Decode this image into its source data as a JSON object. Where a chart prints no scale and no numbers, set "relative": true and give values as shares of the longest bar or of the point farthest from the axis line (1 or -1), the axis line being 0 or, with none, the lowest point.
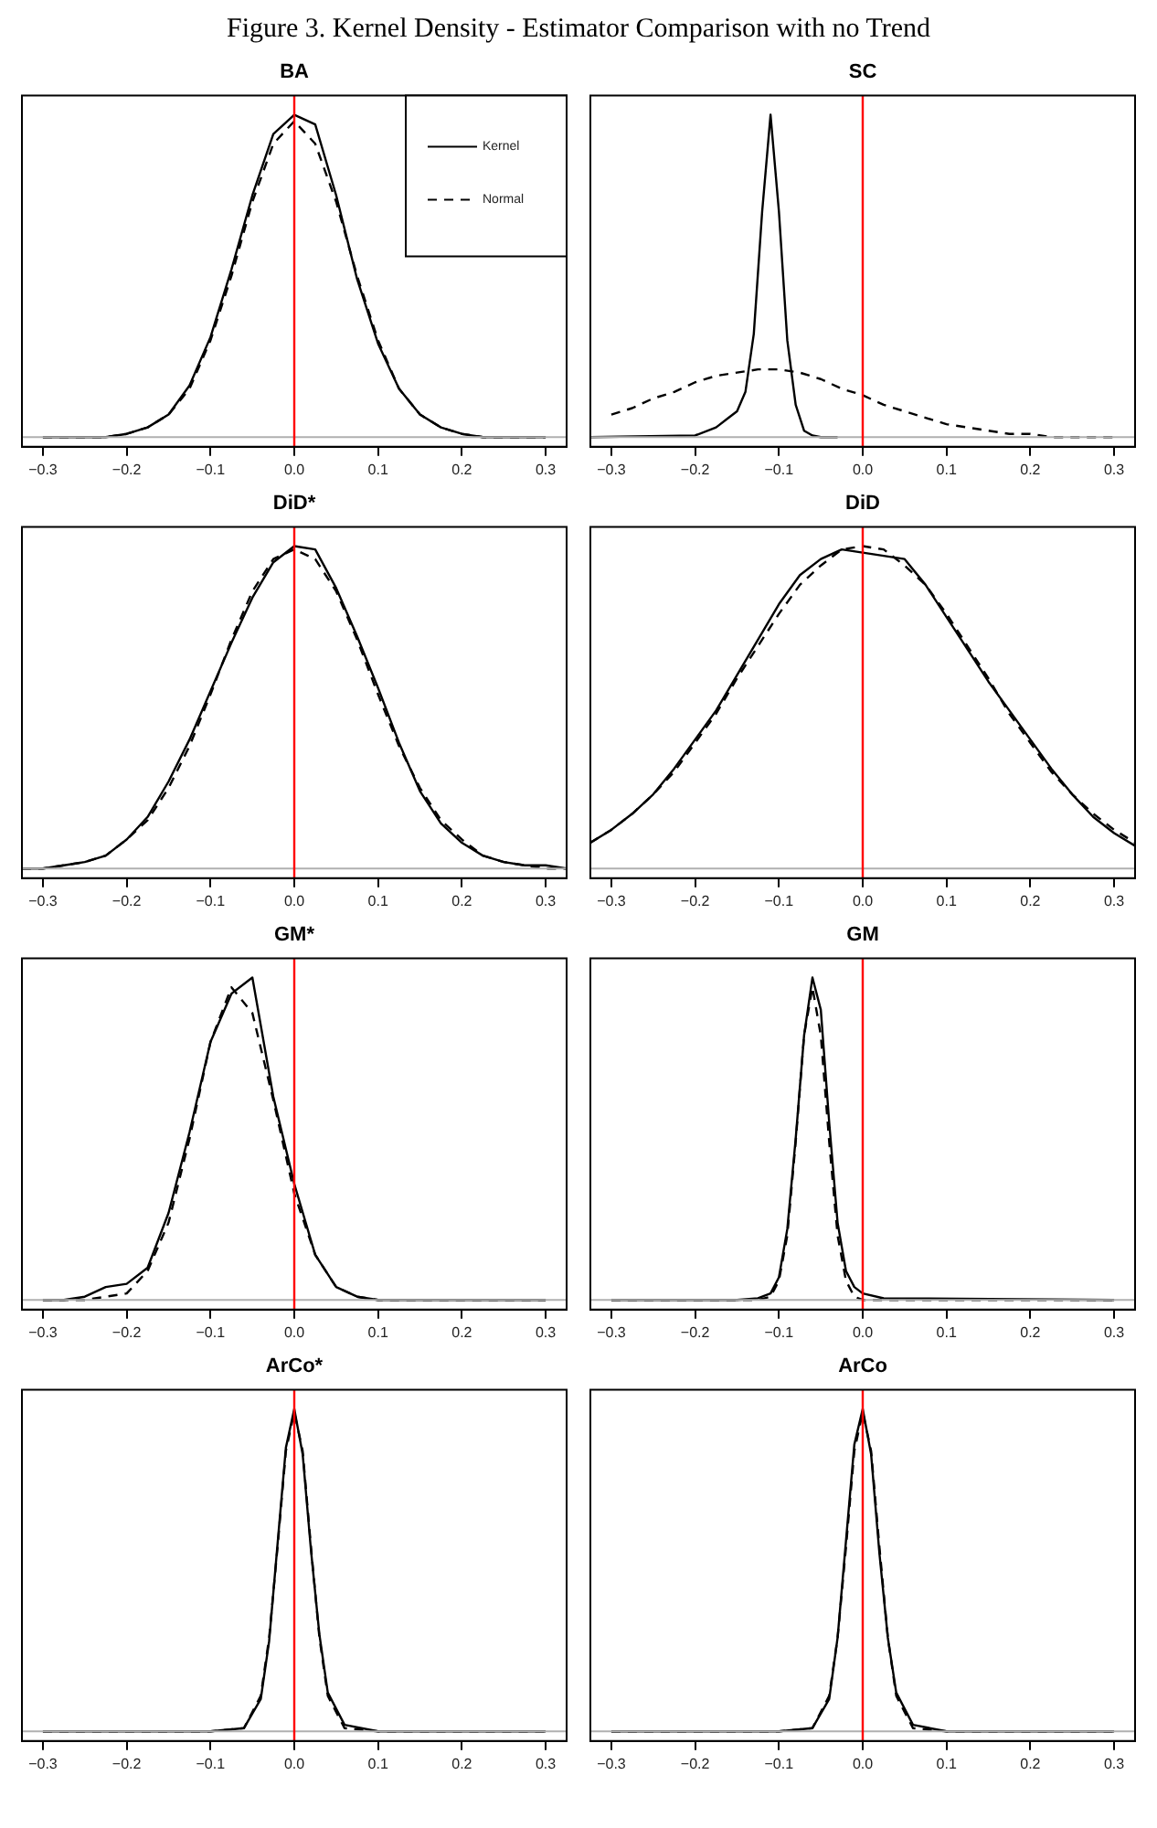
{
  "chart_data": [
    {
      "type": "line",
      "title": "BA",
      "relative": true,
      "legend": "top right",
      "annotations": [
        "Figure 3. Kernel Density - Estimator Comparison with no Trend"
      ],
      "x": [
        -0.3,
        -0.275,
        -0.25,
        -0.225,
        -0.2,
        -0.175,
        -0.15,
        -0.125,
        -0.1,
        -0.075,
        -0.05,
        -0.025,
        0,
        0.025,
        0.05,
        0.075,
        0.1,
        0.125,
        0.15,
        0.175,
        0.2,
        0.225,
        0.25,
        0.275,
        0.3
      ],
      "xlim": [
        -0.325,
        0.325
      ],
      "xticks": [
        {
          "value": -0.3,
          "label": "−0.3"
        },
        {
          "value": -0.2,
          "label": "−0.2"
        },
        {
          "value": -0.1,
          "label": "−0.1"
        },
        {
          "value": 0,
          "label": "0.0"
        },
        {
          "value": 0.1,
          "label": "0.1"
        },
        {
          "value": 0.2,
          "label": "0.2"
        },
        {
          "value": 0.3,
          "label": "0.3"
        }
      ],
      "ref_lines": [
        {
          "axis": "x",
          "value": 0,
          "color": "#ff0000"
        }
      ],
      "series": [
        {
          "name": "Kernel",
          "color": "#000000",
          "line_style": "solid",
          "values": [
            0,
            0,
            0,
            0,
            0.01,
            0.03,
            0.07,
            0.16,
            0.31,
            0.52,
            0.75,
            0.94,
            1,
            0.97,
            0.75,
            0.49,
            0.29,
            0.15,
            0.07,
            0.03,
            0.01,
            0,
            0,
            0,
            0
          ]
        },
        {
          "name": "Normal",
          "color": "#000000",
          "line_style": "dashed",
          "values": [
            0,
            0,
            0,
            0,
            0.01,
            0.03,
            0.07,
            0.15,
            0.3,
            0.5,
            0.73,
            0.91,
            0.98,
            0.91,
            0.73,
            0.5,
            0.3,
            0.15,
            0.07,
            0.03,
            0.01,
            0,
            0,
            0,
            0
          ]
        }
      ]
    },
    {
      "type": "line",
      "title": "SC",
      "relative": true,
      "x": [
        -0.3,
        -0.275,
        -0.25,
        -0.225,
        -0.2,
        -0.175,
        -0.15,
        -0.125,
        -0.1,
        -0.075,
        -0.05,
        -0.025,
        0,
        0.025,
        0.05,
        0.075,
        0.1,
        0.125,
        0.15,
        0.175,
        0.2,
        0.225,
        0.25,
        0.275,
        0.3
      ],
      "xlim": [
        -0.325,
        0.325
      ],
      "xticks": [
        {
          "value": -0.3,
          "label": "−0.3"
        },
        {
          "value": -0.2,
          "label": "−0.2"
        },
        {
          "value": -0.1,
          "label": "−0.1"
        },
        {
          "value": 0,
          "label": "0.0"
        },
        {
          "value": 0.1,
          "label": "0.1"
        },
        {
          "value": 0.2,
          "label": "0.2"
        },
        {
          "value": 0.3,
          "label": "0.3"
        }
      ],
      "ref_lines": [
        {
          "axis": "x",
          "value": 0,
          "color": "#ff0000"
        }
      ],
      "series": [
        {
          "color": "#000000",
          "line_style": "solid",
          "x": [
            -0.325,
            -0.2,
            -0.175,
            -0.16,
            -0.15,
            -0.14,
            -0.13,
            -0.12,
            -0.11,
            -0.1,
            -0.09,
            -0.08,
            -0.07,
            -0.06,
            -0.05,
            -0.03
          ],
          "values": [
            0,
            0.005,
            0.03,
            0.06,
            0.08,
            0.14,
            0.32,
            0.7,
            1,
            0.7,
            0.3,
            0.1,
            0.02,
            0.005,
            0,
            0
          ]
        },
        {
          "color": "#000000",
          "line_style": "dashed",
          "values": [
            0.07,
            0.09,
            0.12,
            0.14,
            0.17,
            0.19,
            0.2,
            0.21,
            0.21,
            0.2,
            0.18,
            0.15,
            0.13,
            0.1,
            0.08,
            0.06,
            0.04,
            0.03,
            0.02,
            0.01,
            0.01,
            0,
            0,
            0,
            0
          ]
        }
      ]
    },
    {
      "type": "line",
      "title": "DiD*",
      "relative": true,
      "x": [
        -0.325,
        -0.3,
        -0.275,
        -0.25,
        -0.225,
        -0.2,
        -0.175,
        -0.15,
        -0.125,
        -0.1,
        -0.075,
        -0.05,
        -0.025,
        0,
        0.025,
        0.05,
        0.075,
        0.1,
        0.125,
        0.15,
        0.175,
        0.2,
        0.225,
        0.25,
        0.275,
        0.3,
        0.325
      ],
      "xlim": [
        -0.325,
        0.325
      ],
      "xticks": [
        {
          "value": -0.3,
          "label": "−0.3"
        },
        {
          "value": -0.2,
          "label": "−0.2"
        },
        {
          "value": -0.1,
          "label": "−0.1"
        },
        {
          "value": 0,
          "label": "0.0"
        },
        {
          "value": 0.1,
          "label": "0.1"
        },
        {
          "value": 0.2,
          "label": "0.2"
        },
        {
          "value": 0.3,
          "label": "0.3"
        }
      ],
      "ref_lines": [
        {
          "axis": "x",
          "value": 0,
          "color": "#ff0000"
        }
      ],
      "series": [
        {
          "color": "#000000",
          "line_style": "solid",
          "values": [
            0,
            0,
            0.01,
            0.02,
            0.04,
            0.09,
            0.16,
            0.27,
            0.4,
            0.55,
            0.7,
            0.84,
            0.95,
            1,
            0.99,
            0.87,
            0.72,
            0.56,
            0.39,
            0.24,
            0.14,
            0.08,
            0.04,
            0.02,
            0.01,
            0.01,
            0
          ]
        },
        {
          "color": "#000000",
          "line_style": "dashed",
          "values": [
            0,
            0,
            0.01,
            0.02,
            0.04,
            0.09,
            0.15,
            0.25,
            0.38,
            0.54,
            0.71,
            0.86,
            0.96,
            0.99,
            0.96,
            0.86,
            0.71,
            0.54,
            0.38,
            0.25,
            0.15,
            0.09,
            0.04,
            0.02,
            0.01,
            0,
            0
          ]
        }
      ]
    },
    {
      "type": "line",
      "title": "DiD",
      "relative": true,
      "x": [
        -0.325,
        -0.3,
        -0.275,
        -0.25,
        -0.225,
        -0.2,
        -0.175,
        -0.15,
        -0.125,
        -0.1,
        -0.075,
        -0.05,
        -0.025,
        0,
        0.025,
        0.05,
        0.075,
        0.1,
        0.125,
        0.15,
        0.175,
        0.2,
        0.225,
        0.25,
        0.275,
        0.3,
        0.325
      ],
      "xlim": [
        -0.325,
        0.325
      ],
      "xticks": [
        {
          "value": -0.3,
          "label": "−0.3"
        },
        {
          "value": -0.2,
          "label": "−0.2"
        },
        {
          "value": -0.1,
          "label": "−0.1"
        },
        {
          "value": 0,
          "label": "0.0"
        },
        {
          "value": 0.1,
          "label": "0.1"
        },
        {
          "value": 0.2,
          "label": "0.2"
        },
        {
          "value": 0.3,
          "label": "0.3"
        }
      ],
      "ref_lines": [
        {
          "axis": "x",
          "value": 0,
          "color": "#ff0000"
        }
      ],
      "series": [
        {
          "color": "#000000",
          "line_style": "solid",
          "values": [
            0.08,
            0.12,
            0.17,
            0.23,
            0.31,
            0.4,
            0.49,
            0.6,
            0.71,
            0.82,
            0.91,
            0.96,
            0.99,
            0.98,
            0.97,
            0.96,
            0.88,
            0.78,
            0.68,
            0.58,
            0.49,
            0.4,
            0.31,
            0.23,
            0.16,
            0.11,
            0.07
          ]
        },
        {
          "color": "#000000",
          "line_style": "dashed",
          "values": [
            0.08,
            0.12,
            0.17,
            0.23,
            0.3,
            0.39,
            0.48,
            0.59,
            0.69,
            0.79,
            0.88,
            0.94,
            0.99,
            1,
            0.99,
            0.94,
            0.88,
            0.79,
            0.69,
            0.59,
            0.48,
            0.39,
            0.3,
            0.23,
            0.17,
            0.12,
            0.08
          ]
        }
      ]
    },
    {
      "type": "line",
      "title": "GM*",
      "relative": true,
      "x": [
        -0.3,
        -0.275,
        -0.25,
        -0.225,
        -0.2,
        -0.175,
        -0.15,
        -0.125,
        -0.1,
        -0.075,
        -0.05,
        -0.025,
        0,
        0.025,
        0.05,
        0.075,
        0.1,
        0.125,
        0.15,
        0.175,
        0.2,
        0.225,
        0.25,
        0.275,
        0.3
      ],
      "xlim": [
        -0.325,
        0.325
      ],
      "xticks": [
        {
          "value": -0.3,
          "label": "−0.3"
        },
        {
          "value": -0.2,
          "label": "−0.2"
        },
        {
          "value": -0.1,
          "label": "−0.1"
        },
        {
          "value": 0,
          "label": "0.0"
        },
        {
          "value": 0.1,
          "label": "0.1"
        },
        {
          "value": 0.2,
          "label": "0.2"
        },
        {
          "value": 0.3,
          "label": "0.3"
        }
      ],
      "ref_lines": [
        {
          "axis": "x",
          "value": 0,
          "color": "#ff0000"
        }
      ],
      "series": [
        {
          "color": "#000000",
          "line_style": "solid",
          "values": [
            0,
            0,
            0.01,
            0.04,
            0.05,
            0.1,
            0.27,
            0.52,
            0.8,
            0.95,
            1,
            0.63,
            0.36,
            0.14,
            0.04,
            0.01,
            0,
            0,
            0,
            0,
            0,
            0,
            0,
            0,
            0
          ]
        },
        {
          "color": "#000000",
          "line_style": "dashed",
          "values": [
            0,
            0,
            0,
            0.01,
            0.02,
            0.09,
            0.24,
            0.5,
            0.8,
            0.97,
            0.89,
            0.62,
            0.33,
            0.14,
            0.04,
            0.01,
            0,
            0,
            0,
            0,
            0,
            0,
            0,
            0,
            0
          ]
        }
      ]
    },
    {
      "type": "line",
      "title": "GM",
      "relative": true,
      "x": [
        -0.3,
        -0.15,
        -0.125,
        -0.11,
        -0.1,
        -0.09,
        -0.08,
        -0.07,
        -0.06,
        -0.05,
        -0.04,
        -0.03,
        -0.02,
        -0.01,
        0,
        0.025,
        0.3
      ],
      "xlim": [
        -0.325,
        0.325
      ],
      "xticks": [
        {
          "value": -0.3,
          "label": "−0.3"
        },
        {
          "value": -0.2,
          "label": "−0.2"
        },
        {
          "value": -0.1,
          "label": "−0.1"
        },
        {
          "value": 0,
          "label": "0.0"
        },
        {
          "value": 0.1,
          "label": "0.1"
        },
        {
          "value": 0.2,
          "label": "0.2"
        },
        {
          "value": 0.3,
          "label": "0.3"
        }
      ],
      "ref_lines": [
        {
          "axis": "x",
          "value": 0,
          "color": "#ff0000"
        }
      ],
      "series": [
        {
          "color": "#000000",
          "line_style": "solid",
          "values": [
            0,
            0,
            0.005,
            0.02,
            0.07,
            0.22,
            0.5,
            0.82,
            1,
            0.9,
            0.55,
            0.24,
            0.09,
            0.04,
            0.02,
            0.005,
            0
          ]
        },
        {
          "color": "#000000",
          "line_style": "dashed",
          "values": [
            0,
            0,
            0,
            0.01,
            0.06,
            0.2,
            0.49,
            0.82,
            0.97,
            0.82,
            0.49,
            0.2,
            0.06,
            0.01,
            0,
            0,
            0
          ]
        }
      ]
    },
    {
      "type": "line",
      "title": "ArCo*",
      "relative": true,
      "x": [
        -0.3,
        -0.1,
        -0.06,
        -0.04,
        -0.03,
        -0.02,
        -0.01,
        0,
        0.01,
        0.02,
        0.03,
        0.04,
        0.06,
        0.1,
        0.3
      ],
      "xlim": [
        -0.325,
        0.325
      ],
      "xticks": [
        {
          "value": -0.3,
          "label": "−0.3"
        },
        {
          "value": -0.2,
          "label": "−0.2"
        },
        {
          "value": -0.1,
          "label": "−0.1"
        },
        {
          "value": 0,
          "label": "0.0"
        },
        {
          "value": 0.1,
          "label": "0.1"
        },
        {
          "value": 0.2,
          "label": "0.2"
        },
        {
          "value": 0.3,
          "label": "0.3"
        }
      ],
      "ref_lines": [
        {
          "axis": "x",
          "value": 0,
          "color": "#ff0000"
        }
      ],
      "series": [
        {
          "color": "#000000",
          "line_style": "solid",
          "values": [
            0,
            0,
            0.01,
            0.1,
            0.28,
            0.58,
            0.88,
            1,
            0.86,
            0.56,
            0.3,
            0.12,
            0.02,
            0,
            0
          ]
        },
        {
          "color": "#000000",
          "line_style": "dashed",
          "values": [
            0,
            0,
            0.01,
            0.11,
            0.29,
            0.57,
            0.87,
            0.99,
            0.87,
            0.57,
            0.29,
            0.11,
            0.01,
            0,
            0
          ]
        }
      ]
    },
    {
      "type": "line",
      "title": "ArCo",
      "relative": true,
      "x": [
        -0.3,
        -0.1,
        -0.06,
        -0.04,
        -0.03,
        -0.02,
        -0.01,
        0,
        0.01,
        0.02,
        0.03,
        0.04,
        0.06,
        0.1,
        0.3
      ],
      "xlim": [
        -0.325,
        0.325
      ],
      "xticks": [
        {
          "value": -0.3,
          "label": "−0.3"
        },
        {
          "value": -0.2,
          "label": "−0.2"
        },
        {
          "value": -0.1,
          "label": "−0.1"
        },
        {
          "value": 0,
          "label": "0.0"
        },
        {
          "value": 0.1,
          "label": "0.1"
        },
        {
          "value": 0.2,
          "label": "0.2"
        },
        {
          "value": 0.3,
          "label": "0.3"
        }
      ],
      "ref_lines": [
        {
          "axis": "x",
          "value": 0,
          "color": "#ff0000"
        }
      ],
      "series": [
        {
          "color": "#000000",
          "line_style": "solid",
          "values": [
            0,
            0,
            0.01,
            0.1,
            0.29,
            0.59,
            0.89,
            1,
            0.86,
            0.55,
            0.29,
            0.12,
            0.02,
            0,
            0
          ]
        },
        {
          "color": "#000000",
          "line_style": "dashed",
          "values": [
            0,
            0,
            0.01,
            0.11,
            0.29,
            0.57,
            0.87,
            0.99,
            0.87,
            0.57,
            0.29,
            0.11,
            0.01,
            0,
            0
          ]
        }
      ]
    }
  ]
}
